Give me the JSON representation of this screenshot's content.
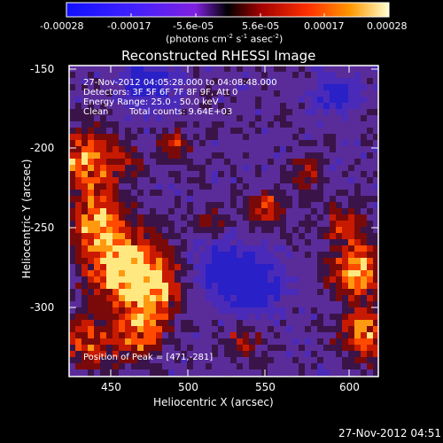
{
  "colorbar": {
    "tick_labels": [
      "-0.00028",
      "-0.00017",
      "-5.6e-05",
      "5.6e-05",
      "0.00017",
      "0.00028"
    ],
    "unit_prefix": "(photons cm",
    "unit_exp1": "-2",
    "unit_mid": " s",
    "unit_exp2": "-1",
    "unit_mid2": " asec",
    "unit_exp3": "-2",
    "unit_suffix": ")"
  },
  "plot": {
    "title": "Reconstructed RHESSI Image",
    "xlabel": "Heliocentric X (arcsec)",
    "ylabel": "Heliocentric Y (arcsec)",
    "x_ticks": [
      "450",
      "500",
      "550",
      "600"
    ],
    "y_ticks": [
      "-150",
      "-200",
      "-250",
      "-300"
    ]
  },
  "overlay": {
    "line1": "27-Nov-2012 04:05:28.000 to 04:08:48.000",
    "line2": "Detectors: 3F 5F 6F 7F 8F 9F, Att 0",
    "line3": "Energy Range: 25.0 - 50.0 keV",
    "line4_label": "Clean",
    "line4_counts": "Total counts: 9.64E+03",
    "peak": "Position of Peak = [471,-281]"
  },
  "footer": {
    "timestamp": "27-Nov-2012 04:51"
  },
  "colors": {
    "background": "#000000",
    "foreground": "#ffffff"
  }
}
